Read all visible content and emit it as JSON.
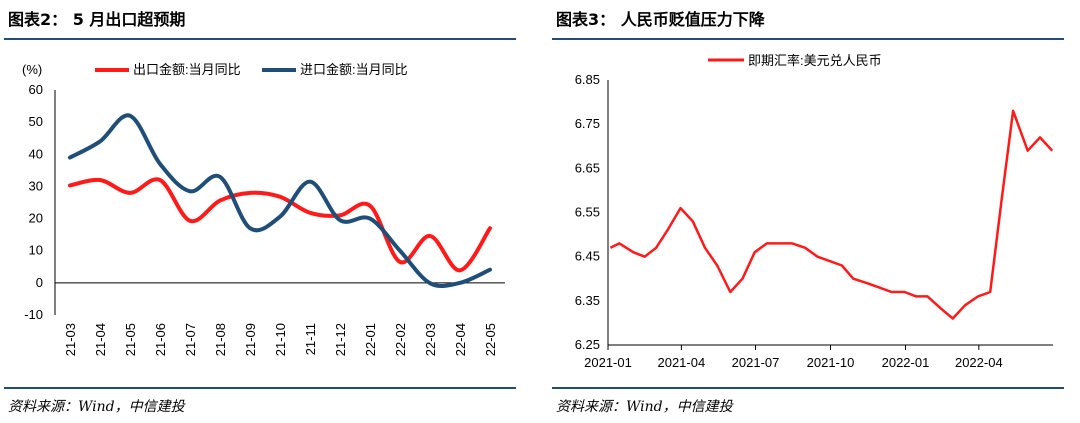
{
  "left": {
    "title": "图表2：  5 月出口超预期",
    "source": "资料来源：Wind，中信建投",
    "chart_data": {
      "type": "line",
      "unit_label": "(%)",
      "categories": [
        "21-03",
        "21-04",
        "21-05",
        "21-06",
        "21-07",
        "21-08",
        "21-09",
        "21-10",
        "21-11",
        "21-12",
        "22-01",
        "22-02",
        "22-03",
        "22-04",
        "22-05"
      ],
      "ylim": [
        -10,
        60
      ],
      "yticks": [
        -10,
        0,
        10,
        20,
        30,
        40,
        50,
        60
      ],
      "legend_position": "top",
      "series": [
        {
          "name": "出口金额:当月同比",
          "color": "#ff1a1a",
          "values": [
            30.3,
            32.0,
            28.0,
            32.0,
            19.3,
            25.6,
            28.0,
            26.8,
            21.8,
            21.0,
            24.0,
            6.5,
            14.6,
            3.9,
            17.0
          ]
        },
        {
          "name": "进口金额:当月同比",
          "color": "#1f4e79",
          "values": [
            39.0,
            44.0,
            52.0,
            37.0,
            28.5,
            33.0,
            17.0,
            20.6,
            31.5,
            19.5,
            20.0,
            10.0,
            -0.1,
            0.0,
            4.1
          ]
        }
      ]
    }
  },
  "right": {
    "title": "图表3：  人民币贬值压力下降",
    "source": "资料来源：Wind，中信建投",
    "chart_data": {
      "type": "line",
      "xlabels": [
        "2021-01",
        "2021-04",
        "2021-07",
        "2021-10",
        "2022-01",
        "2022-04"
      ],
      "ylim": [
        6.25,
        6.85
      ],
      "yticks": [
        "6.25",
        "6.35",
        "6.45",
        "6.55",
        "6.65",
        "6.75",
        "6.85"
      ],
      "legend_position": "top",
      "series": [
        {
          "name": "即期汇率:美元兑人民币",
          "color": "#ff1a1a",
          "x": [
            "2021-01-04",
            "2021-01-15",
            "2021-02-01",
            "2021-02-15",
            "2021-03-01",
            "2021-03-15",
            "2021-03-31",
            "2021-04-15",
            "2021-04-30",
            "2021-05-15",
            "2021-05-31",
            "2021-06-15",
            "2021-06-30",
            "2021-07-15",
            "2021-07-30",
            "2021-08-15",
            "2021-08-31",
            "2021-09-15",
            "2021-09-30",
            "2021-10-15",
            "2021-10-29",
            "2021-11-15",
            "2021-11-30",
            "2021-12-15",
            "2021-12-31",
            "2022-01-14",
            "2022-01-28",
            "2022-02-15",
            "2022-02-28",
            "2022-03-15",
            "2022-03-31",
            "2022-04-15",
            "2022-04-29",
            "2022-05-13",
            "2022-05-31",
            "2022-06-15",
            "2022-06-30"
          ],
          "y": [
            6.47,
            6.48,
            6.46,
            6.45,
            6.47,
            6.51,
            6.56,
            6.53,
            6.47,
            6.43,
            6.37,
            6.4,
            6.46,
            6.48,
            6.48,
            6.48,
            6.47,
            6.45,
            6.44,
            6.43,
            6.4,
            6.39,
            6.38,
            6.37,
            6.37,
            6.36,
            6.36,
            6.33,
            6.31,
            6.34,
            6.36,
            6.37,
            6.58,
            6.78,
            6.69,
            6.72,
            6.69
          ]
        }
      ]
    }
  }
}
